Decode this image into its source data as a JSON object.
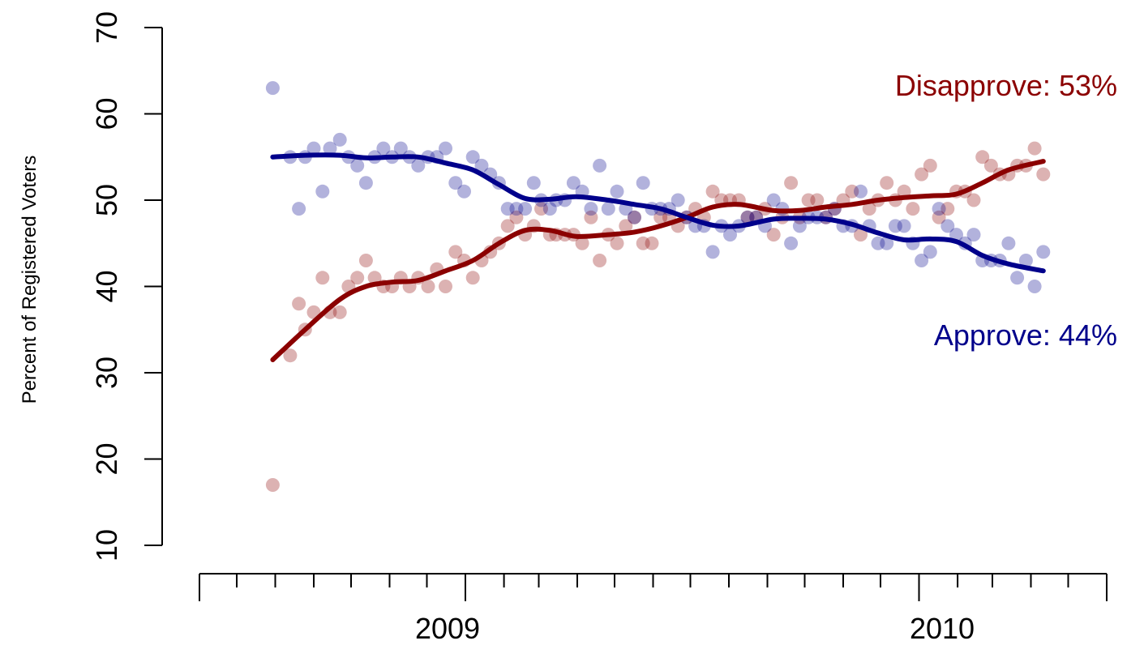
{
  "chart_data": {
    "type": "scatter",
    "title": "",
    "xlabel": "",
    "ylabel": "Percent of Registered Voters",
    "ylim": [
      10,
      70
    ],
    "yticks": [
      10,
      20,
      30,
      40,
      50,
      60,
      70
    ],
    "xlim": [
      "2008-06-01",
      "2010-06-01"
    ],
    "x_tick_labels": [
      {
        "label": "2009",
        "date": "2009-01-01"
      },
      {
        "label": "2010",
        "date": "2010-01-01"
      }
    ],
    "grid": false,
    "series": [
      {
        "name": "Disapprove: 53%",
        "color": "#8b0000",
        "points": [
          [
            "2008-07-30",
            17
          ],
          [
            "2008-08-13",
            32
          ],
          [
            "2008-08-20",
            38
          ],
          [
            "2008-08-25",
            35
          ],
          [
            "2008-09-01",
            37
          ],
          [
            "2008-09-08",
            41
          ],
          [
            "2008-09-14",
            37
          ],
          [
            "2008-09-22",
            37
          ],
          [
            "2008-09-29",
            40
          ],
          [
            "2008-10-06",
            41
          ],
          [
            "2008-10-13",
            43
          ],
          [
            "2008-10-20",
            41
          ],
          [
            "2008-10-27",
            40
          ],
          [
            "2008-11-03",
            40
          ],
          [
            "2008-11-10",
            41
          ],
          [
            "2008-11-17",
            40
          ],
          [
            "2008-11-24",
            41
          ],
          [
            "2008-12-02",
            40
          ],
          [
            "2008-12-09",
            42
          ],
          [
            "2008-12-16",
            40
          ],
          [
            "2008-12-24",
            44
          ],
          [
            "2008-12-31",
            43
          ],
          [
            "2009-01-07",
            41
          ],
          [
            "2009-01-14",
            43
          ],
          [
            "2009-01-21",
            44
          ],
          [
            "2009-01-28",
            45
          ],
          [
            "2009-02-04",
            47
          ],
          [
            "2009-02-11",
            48
          ],
          [
            "2009-02-18",
            46
          ],
          [
            "2009-02-25",
            47
          ],
          [
            "2009-03-03",
            49
          ],
          [
            "2009-03-10",
            46
          ],
          [
            "2009-03-15",
            46
          ],
          [
            "2009-03-22",
            46
          ],
          [
            "2009-03-29",
            46
          ],
          [
            "2009-04-05",
            45
          ],
          [
            "2009-04-12",
            48
          ],
          [
            "2009-04-19",
            43
          ],
          [
            "2009-04-26",
            46
          ],
          [
            "2009-05-03",
            45
          ],
          [
            "2009-05-10",
            47
          ],
          [
            "2009-05-17",
            48
          ],
          [
            "2009-05-24",
            45
          ],
          [
            "2009-05-31",
            45
          ],
          [
            "2009-06-07",
            48
          ],
          [
            "2009-06-14",
            48
          ],
          [
            "2009-06-21",
            47
          ],
          [
            "2009-06-28",
            48
          ],
          [
            "2009-07-05",
            49
          ],
          [
            "2009-07-12",
            48
          ],
          [
            "2009-07-19",
            51
          ],
          [
            "2009-07-26",
            50
          ],
          [
            "2009-08-02",
            50
          ],
          [
            "2009-08-09",
            50
          ],
          [
            "2009-08-16",
            48
          ],
          [
            "2009-08-23",
            48
          ],
          [
            "2009-08-30",
            49
          ],
          [
            "2009-09-06",
            46
          ],
          [
            "2009-09-13",
            48
          ],
          [
            "2009-09-20",
            52
          ],
          [
            "2009-09-27",
            48
          ],
          [
            "2009-10-04",
            50
          ],
          [
            "2009-10-11",
            50
          ],
          [
            "2009-10-18",
            48
          ],
          [
            "2009-10-25",
            49
          ],
          [
            "2009-11-01",
            50
          ],
          [
            "2009-11-08",
            51
          ],
          [
            "2009-11-15",
            46
          ],
          [
            "2009-11-22",
            49
          ],
          [
            "2009-11-29",
            50
          ],
          [
            "2009-12-06",
            52
          ],
          [
            "2009-12-13",
            50
          ],
          [
            "2009-12-20",
            51
          ],
          [
            "2009-12-27",
            49
          ],
          [
            "2010-01-03",
            53
          ],
          [
            "2010-01-10",
            54
          ],
          [
            "2010-01-17",
            48
          ],
          [
            "2010-01-24",
            49
          ],
          [
            "2010-01-31",
            51
          ],
          [
            "2010-02-07",
            51
          ],
          [
            "2010-02-14",
            50
          ],
          [
            "2010-02-21",
            55
          ],
          [
            "2010-02-28",
            54
          ],
          [
            "2010-03-07",
            53
          ],
          [
            "2010-03-14",
            53
          ],
          [
            "2010-03-21",
            54
          ],
          [
            "2010-03-28",
            54
          ],
          [
            "2010-04-04",
            56
          ],
          [
            "2010-04-11",
            53
          ]
        ],
        "trend": [
          [
            "2008-07-30",
            31.5
          ],
          [
            "2008-08-25",
            35
          ],
          [
            "2008-09-22",
            38.5
          ],
          [
            "2008-10-13",
            40
          ],
          [
            "2008-11-03",
            40.5
          ],
          [
            "2008-11-24",
            40.7
          ],
          [
            "2008-12-16",
            41.8
          ],
          [
            "2009-01-07",
            43
          ],
          [
            "2009-01-28",
            45
          ],
          [
            "2009-02-18",
            46.5
          ],
          [
            "2009-03-10",
            46.5
          ],
          [
            "2009-03-31",
            45.8
          ],
          [
            "2009-04-26",
            46
          ],
          [
            "2009-05-17",
            46.3
          ],
          [
            "2009-06-07",
            47
          ],
          [
            "2009-06-28",
            48
          ],
          [
            "2009-07-19",
            49.2
          ],
          [
            "2009-08-09",
            49.5
          ],
          [
            "2009-09-06",
            48.8
          ],
          [
            "2009-09-27",
            48.8
          ],
          [
            "2009-10-18",
            49.2
          ],
          [
            "2009-11-08",
            49.5
          ],
          [
            "2009-11-29",
            50
          ],
          [
            "2009-12-20",
            50.3
          ],
          [
            "2010-01-10",
            50.5
          ],
          [
            "2010-01-31",
            50.7
          ],
          [
            "2010-02-21",
            52
          ],
          [
            "2010-03-14",
            53.5
          ],
          [
            "2010-04-11",
            54.5
          ]
        ]
      },
      {
        "name": "Approve: 44%",
        "color": "#00008b",
        "points": [
          [
            "2008-07-30",
            63
          ],
          [
            "2008-08-13",
            55
          ],
          [
            "2008-08-20",
            49
          ],
          [
            "2008-08-25",
            55
          ],
          [
            "2008-09-01",
            56
          ],
          [
            "2008-09-08",
            51
          ],
          [
            "2008-09-14",
            56
          ],
          [
            "2008-09-22",
            57
          ],
          [
            "2008-09-29",
            55
          ],
          [
            "2008-10-06",
            54
          ],
          [
            "2008-10-13",
            52
          ],
          [
            "2008-10-20",
            55
          ],
          [
            "2008-10-27",
            56
          ],
          [
            "2008-11-03",
            55
          ],
          [
            "2008-11-10",
            56
          ],
          [
            "2008-11-17",
            55
          ],
          [
            "2008-11-24",
            54
          ],
          [
            "2008-12-02",
            55
          ],
          [
            "2008-12-09",
            55
          ],
          [
            "2008-12-16",
            56
          ],
          [
            "2008-12-24",
            52
          ],
          [
            "2008-12-31",
            51
          ],
          [
            "2009-01-07",
            55
          ],
          [
            "2009-01-14",
            54
          ],
          [
            "2009-01-21",
            53
          ],
          [
            "2009-01-28",
            52
          ],
          [
            "2009-02-04",
            49
          ],
          [
            "2009-02-11",
            49
          ],
          [
            "2009-02-18",
            49
          ],
          [
            "2009-02-25",
            52
          ],
          [
            "2009-03-03",
            50
          ],
          [
            "2009-03-10",
            49
          ],
          [
            "2009-03-15",
            50
          ],
          [
            "2009-03-22",
            50
          ],
          [
            "2009-03-29",
            52
          ],
          [
            "2009-04-05",
            51
          ],
          [
            "2009-04-12",
            49
          ],
          [
            "2009-04-19",
            54
          ],
          [
            "2009-04-26",
            49
          ],
          [
            "2009-05-03",
            51
          ],
          [
            "2009-05-10",
            49
          ],
          [
            "2009-05-17",
            48
          ],
          [
            "2009-05-24",
            52
          ],
          [
            "2009-05-31",
            49
          ],
          [
            "2009-06-07",
            49
          ],
          [
            "2009-06-14",
            49
          ],
          [
            "2009-06-21",
            50
          ],
          [
            "2009-06-28",
            48
          ],
          [
            "2009-07-05",
            47
          ],
          [
            "2009-07-12",
            47
          ],
          [
            "2009-07-19",
            44
          ],
          [
            "2009-07-26",
            47
          ],
          [
            "2009-08-02",
            46
          ],
          [
            "2009-08-09",
            47
          ],
          [
            "2009-08-16",
            48
          ],
          [
            "2009-08-23",
            48
          ],
          [
            "2009-08-30",
            47
          ],
          [
            "2009-09-06",
            50
          ],
          [
            "2009-09-13",
            49
          ],
          [
            "2009-09-20",
            45
          ],
          [
            "2009-09-27",
            47
          ],
          [
            "2009-10-04",
            48
          ],
          [
            "2009-10-11",
            48
          ],
          [
            "2009-10-18",
            48
          ],
          [
            "2009-10-25",
            49
          ],
          [
            "2009-11-01",
            47
          ],
          [
            "2009-11-08",
            47
          ],
          [
            "2009-11-15",
            51
          ],
          [
            "2009-11-22",
            47
          ],
          [
            "2009-11-29",
            45
          ],
          [
            "2009-12-06",
            45
          ],
          [
            "2009-12-13",
            47
          ],
          [
            "2009-12-20",
            47
          ],
          [
            "2009-12-27",
            45
          ],
          [
            "2010-01-03",
            43
          ],
          [
            "2010-01-10",
            44
          ],
          [
            "2010-01-17",
            49
          ],
          [
            "2010-01-24",
            47
          ],
          [
            "2010-01-31",
            46
          ],
          [
            "2010-02-07",
            45
          ],
          [
            "2010-02-14",
            46
          ],
          [
            "2010-02-21",
            43
          ],
          [
            "2010-02-28",
            43
          ],
          [
            "2010-03-07",
            43
          ],
          [
            "2010-03-14",
            45
          ],
          [
            "2010-03-21",
            41
          ],
          [
            "2010-03-28",
            43
          ],
          [
            "2010-04-04",
            40
          ],
          [
            "2010-04-11",
            44
          ]
        ],
        "trend": [
          [
            "2008-07-30",
            55
          ],
          [
            "2008-08-25",
            55.2
          ],
          [
            "2008-09-22",
            55.2
          ],
          [
            "2008-10-13",
            54.9
          ],
          [
            "2008-11-03",
            55
          ],
          [
            "2008-11-24",
            55
          ],
          [
            "2008-12-16",
            54.3
          ],
          [
            "2009-01-07",
            53.5
          ],
          [
            "2009-01-28",
            51.8
          ],
          [
            "2009-02-18",
            50.2
          ],
          [
            "2009-03-10",
            50.1
          ],
          [
            "2009-03-31",
            50.4
          ],
          [
            "2009-04-26",
            50
          ],
          [
            "2009-05-17",
            49.5
          ],
          [
            "2009-06-07",
            49
          ],
          [
            "2009-06-28",
            48
          ],
          [
            "2009-07-19",
            47.1
          ],
          [
            "2009-08-09",
            47
          ],
          [
            "2009-09-06",
            47.8
          ],
          [
            "2009-09-27",
            47.9
          ],
          [
            "2009-10-18",
            47.8
          ],
          [
            "2009-11-08",
            47.2
          ],
          [
            "2009-11-29",
            46.2
          ],
          [
            "2009-12-20",
            45.4
          ],
          [
            "2010-01-10",
            45.5
          ],
          [
            "2010-01-31",
            45.2
          ],
          [
            "2010-02-21",
            43.6
          ],
          [
            "2010-03-14",
            42.6
          ],
          [
            "2010-04-11",
            41.8
          ]
        ]
      }
    ]
  }
}
